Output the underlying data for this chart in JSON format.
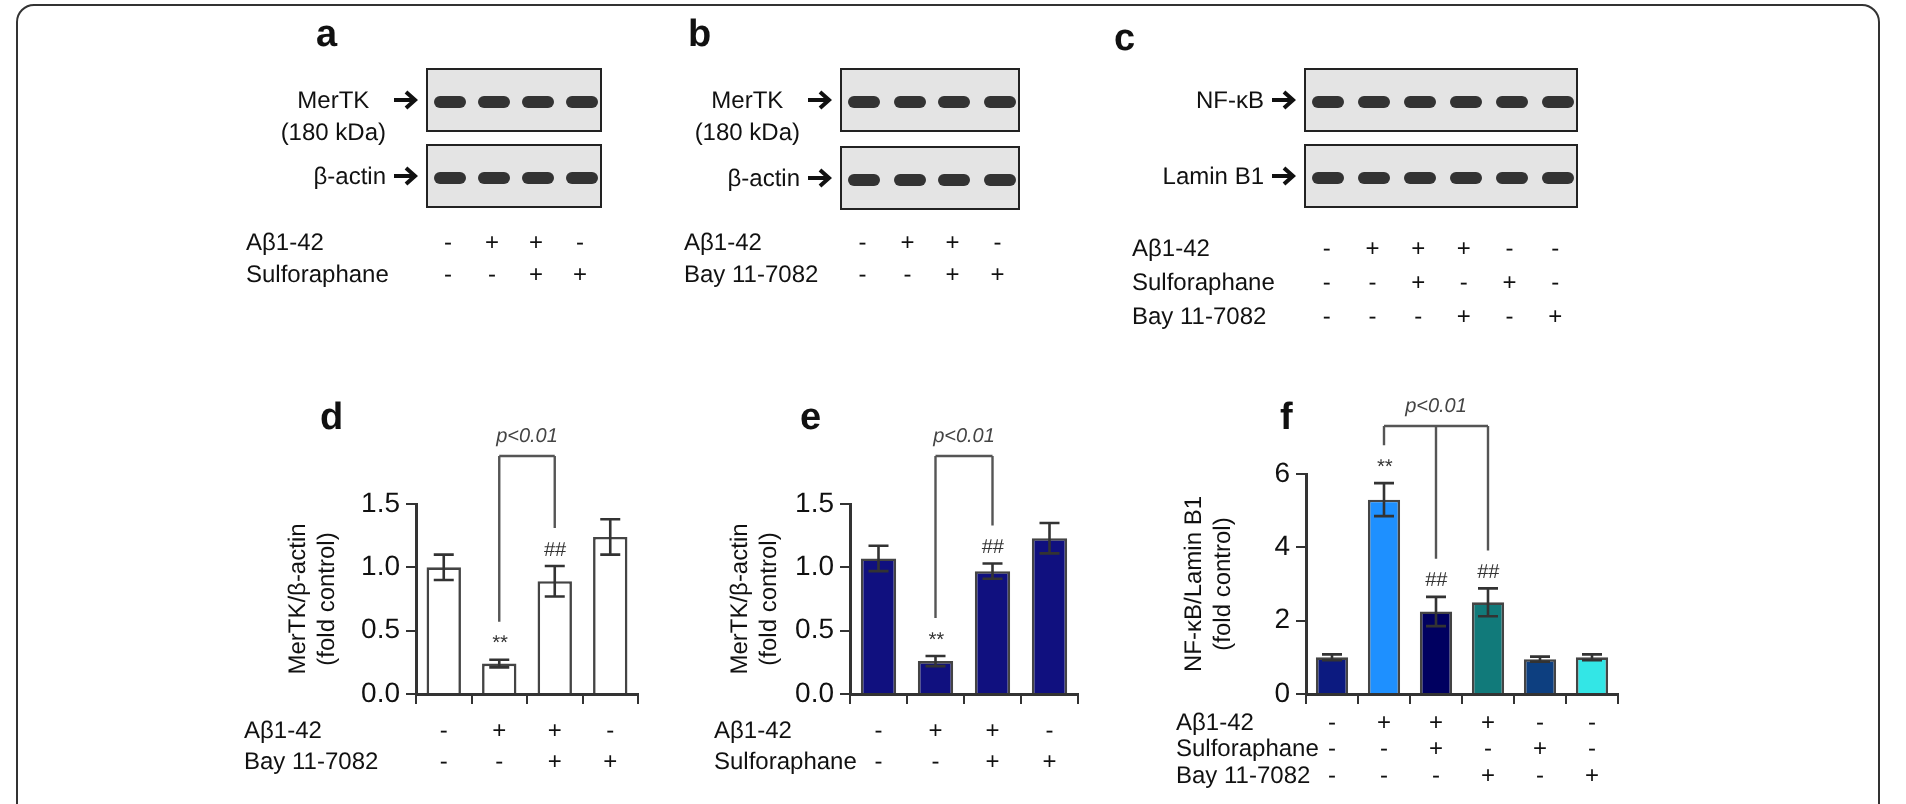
{
  "chart_data": [
    {
      "type": "other",
      "title": "a",
      "annotations": [
        "MerTK\n(180 kDa)",
        "β-actin"
      ],
      "categories": [
        "-\n-",
        "+\n-",
        "+\n+",
        "-\n+"
      ],
      "xlabel": "Aβ1-42\nSulforaphane"
    },
    {
      "type": "other",
      "title": "b",
      "annotations": [
        "MerTK\n(180 kDa)",
        "β-actin"
      ],
      "categories": [
        "-\n-",
        "+\n-",
        "+\n+",
        "-\n+"
      ],
      "xlabel": "Aβ1-42\nBay 11-7082"
    },
    {
      "type": "other",
      "title": "c",
      "annotations": [
        "NF-κB",
        "Lamin B1"
      ],
      "categories": [
        "-\n-\n-",
        "+\n-\n-",
        "+\n+\n-",
        "+\n-\n+",
        "-\n+\n-",
        "-\n-\n+"
      ],
      "xlabel": "Aβ1-42\nSulforaphane\nBay 11-7082"
    },
    {
      "type": "bar",
      "title": "d",
      "ylabel": "MerTK/β-actin\n(fold control)",
      "xlabel": "Aβ1-42\nBay 11-7082",
      "categories": [
        "-\n-",
        "+\n-",
        "+\n+",
        "-\n+"
      ],
      "values": [
        1.0,
        0.24,
        0.89,
        1.24
      ],
      "errors": [
        0.1,
        0.03,
        0.12,
        0.14
      ],
      "color": "#ffffff",
      "ylim": [
        0,
        1.5
      ],
      "yticks": [
        {
          "value": 0,
          "label": "0.0"
        },
        {
          "value": 0.5,
          "label": "0.5"
        },
        {
          "value": 1,
          "label": "1.0"
        },
        {
          "value": 1.5,
          "label": "1.5"
        }
      ],
      "annotations": [
        "p<0.01"
      ],
      "value_labels": [
        null,
        "**",
        "##",
        null
      ]
    },
    {
      "type": "bar",
      "title": "e",
      "ylabel": "MerTK/β-actin\n(fold control)",
      "xlabel": "Aβ1-42\nSulforaphane",
      "categories": [
        "-\n-",
        "+\n-",
        "+\n+",
        "-\n+"
      ],
      "values": [
        1.07,
        0.26,
        0.97,
        1.23
      ],
      "errors": [
        0.1,
        0.04,
        0.06,
        0.12
      ],
      "color": "#10107f",
      "ylim": [
        0,
        1.5
      ],
      "yticks": [
        {
          "value": 0,
          "label": "0.0"
        },
        {
          "value": 0.5,
          "label": "0.5"
        },
        {
          "value": 1,
          "label": "1.0"
        },
        {
          "value": 1.5,
          "label": "1.5"
        }
      ],
      "annotations": [
        "p<0.01"
      ],
      "value_labels": [
        null,
        "**",
        "##",
        null
      ]
    },
    {
      "type": "bar",
      "title": "f",
      "ylabel": "NF-κB/Lamin B1\n(fold control)",
      "xlabel": "Aβ1-42\nSulforaphane\nBay 11-7082",
      "categories": [
        "-\n-\n-",
        "+\n-\n-",
        "+\n+\n-",
        "+\n-\n+",
        "-\n+\n-",
        "-\n-\n+"
      ],
      "values": [
        1.0,
        5.3,
        2.25,
        2.5,
        0.95,
        1.0
      ],
      "errors": [
        0.08,
        0.45,
        0.4,
        0.38,
        0.07,
        0.08
      ],
      "colors": [
        "#0c1a80",
        "#1e90ff",
        "#000060",
        "#117a7a",
        "#0d3f80",
        "#33e6e6"
      ],
      "ylim": [
        0,
        6
      ],
      "yticks": [
        0,
        2,
        4,
        6
      ],
      "annotations": [
        "p<0.01"
      ],
      "value_labels": [
        null,
        "**",
        "##",
        "##",
        null,
        null
      ]
    }
  ]
}
